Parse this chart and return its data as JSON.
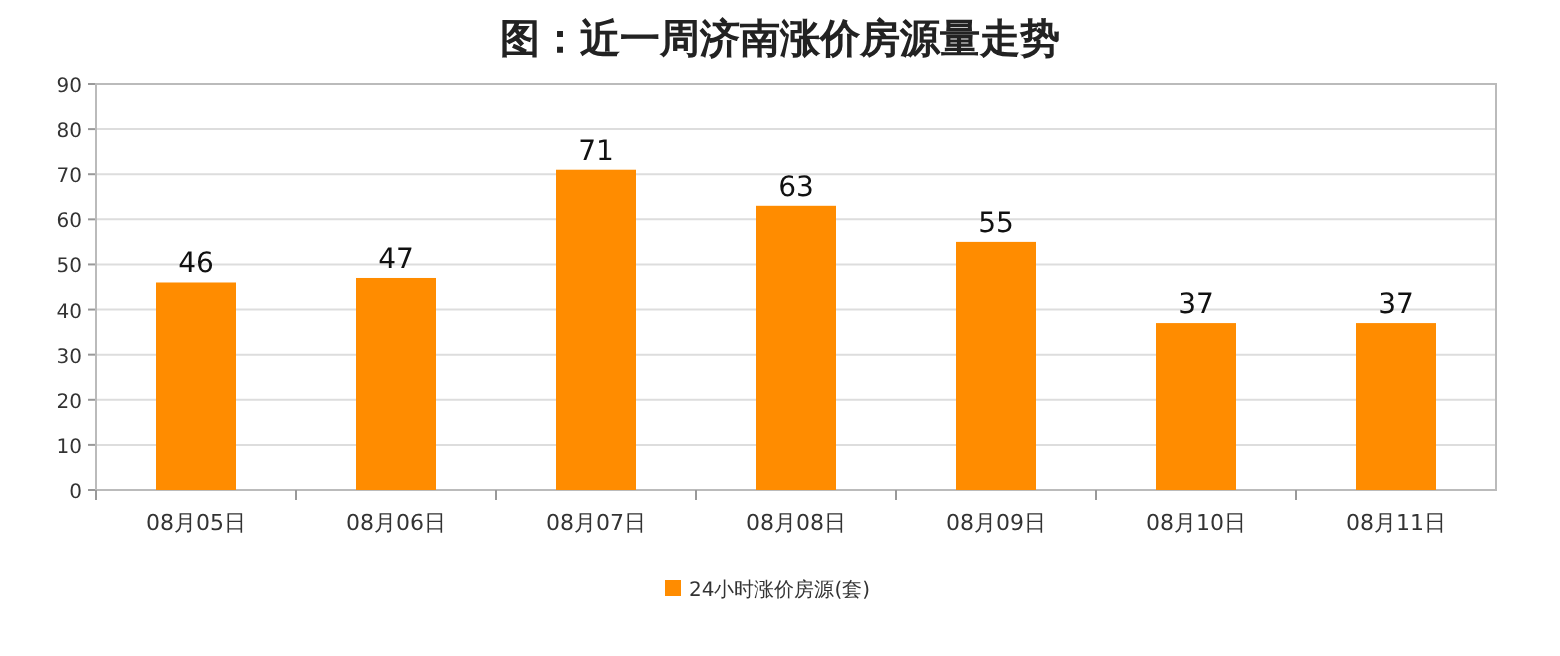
{
  "chart_data": {
    "type": "bar",
    "title": "图：近一周济南涨价房源量走势",
    "categories": [
      "08月05日",
      "08月06日",
      "08月07日",
      "08月08日",
      "08月09日",
      "08月10日",
      "08月11日"
    ],
    "series": [
      {
        "name": "24小时涨价房源(套)",
        "color": "#ff8c00",
        "values": [
          46,
          47,
          71,
          63,
          55,
          37,
          37
        ]
      }
    ],
    "ylim": [
      0,
      90
    ],
    "yticks": [
      0,
      10,
      20,
      30,
      40,
      50,
      60,
      70,
      80,
      90
    ],
    "grid": "y",
    "legend": "bottom",
    "data_labels": true
  }
}
